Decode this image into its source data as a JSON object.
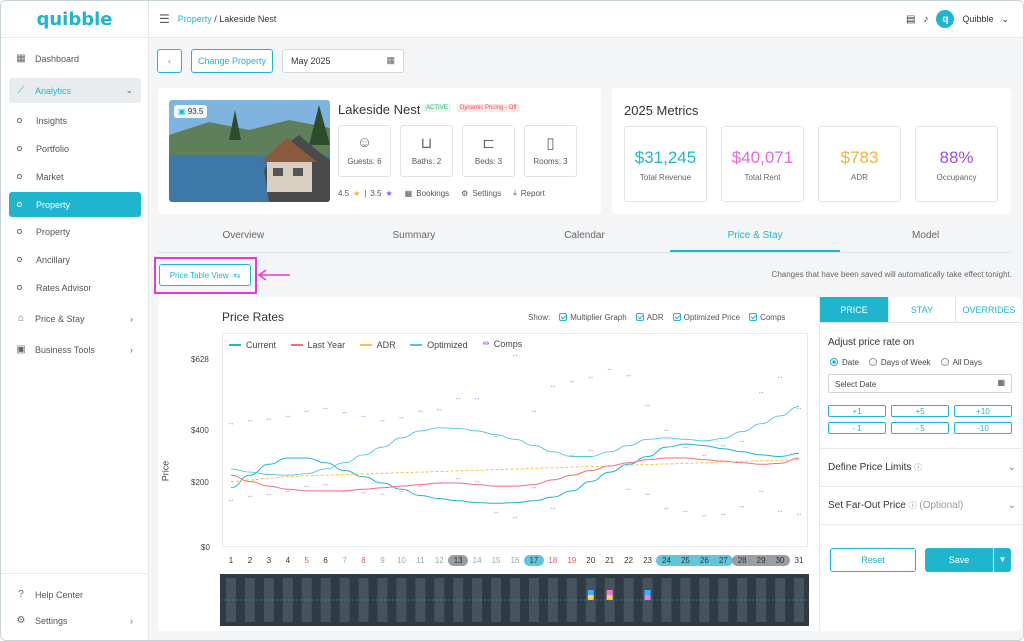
{
  "app": {
    "brand": "quibble"
  },
  "sidebar": {
    "items": [
      {
        "label": "Dashboard",
        "icon": "dashboard-icon"
      },
      {
        "label": "Analytics",
        "icon": "chart-icon"
      },
      {
        "label": "Insights"
      },
      {
        "label": "Portfolio"
      },
      {
        "label": "Market"
      },
      {
        "label": "Property"
      },
      {
        "label": "Property"
      },
      {
        "label": "Ancillary"
      },
      {
        "label": "Rates Advisor"
      },
      {
        "label": "Price & Stay",
        "icon": "home-lock-icon"
      },
      {
        "label": "Business Tools",
        "icon": "briefcase-icon"
      }
    ],
    "help": "Help Center",
    "settings": "Settings"
  },
  "breadcrumb": {
    "parent": "Property",
    "sep": " / ",
    "current": "Lakeside Nest"
  },
  "user": {
    "name": "Quibble",
    "initial": "q"
  },
  "toolbar": {
    "back": "‹",
    "change_property": "Change Property",
    "date": "May 2025"
  },
  "property": {
    "name": "Lakeside Nest",
    "status": "ACTIVE",
    "pricing": "Dynamic Pricing - Off",
    "score": "93.5",
    "amenities": [
      {
        "label": "Guests: 6"
      },
      {
        "label": "Baths: 2"
      },
      {
        "label": "Beds: 3"
      },
      {
        "label": "Rooms: 3"
      }
    ],
    "rating1": "4.5",
    "rating_sep": "|",
    "rating2": "3.5",
    "bookings": "Bookings",
    "settings": "Settings",
    "report": "Report"
  },
  "metrics": {
    "title": "2025 Metrics",
    "items": [
      {
        "value": "$31,245",
        "label": "Total Revenue",
        "color": "#1fb5cf"
      },
      {
        "value": "$40,071",
        "label": "Total Rent",
        "color": "#e26ad8"
      },
      {
        "value": "$783",
        "label": "ADR",
        "color": "#f0b33c"
      },
      {
        "value": "88%",
        "label": "Occupancy",
        "color": "#9a4fe0"
      }
    ]
  },
  "tabs": [
    "Overview",
    "Summary",
    "Calendar",
    "Price & Stay",
    "Model"
  ],
  "view": {
    "button": "Price Table View",
    "notice": "Changes that have been saved will automatically take effect tonight."
  },
  "chart": {
    "title": "Price Rates",
    "show_label": "Show:",
    "toggles": [
      "Multiplier Graph",
      "ADR",
      "Optimized Price",
      "Comps"
    ],
    "ylabel": "Price",
    "yticks": [
      "$628",
      "$400",
      "$200",
      "$0"
    ]
  },
  "chart_data": {
    "type": "line",
    "title": "Price Rates",
    "xlabel": "",
    "ylabel": "Price",
    "ylim": [
      0,
      628
    ],
    "yticks": [
      0,
      200,
      400,
      628
    ],
    "x": [
      1,
      2,
      3,
      4,
      5,
      6,
      7,
      8,
      9,
      10,
      11,
      12,
      13,
      14,
      15,
      16,
      17,
      18,
      19,
      20,
      21,
      22,
      23,
      24,
      25,
      26,
      27,
      28,
      29,
      30,
      31
    ],
    "legend": [
      "Current",
      "Last Year",
      "ADR",
      "Optimized",
      "Comps"
    ],
    "series": [
      {
        "name": "Current",
        "color": "#1fb5cf",
        "values": [
          190,
          230,
          265,
          285,
          285,
          270,
          245,
          225,
          205,
          185,
          165,
          155,
          148,
          142,
          140,
          142,
          148,
          160,
          180,
          210,
          240,
          265,
          290,
          320,
          330,
          325,
          315,
          305,
          295,
          290,
          300
        ]
      },
      {
        "name": "Last Year",
        "color": "#f26d7d",
        "values": [
          230,
          210,
          195,
          185,
          180,
          180,
          180,
          185,
          190,
          195,
          200,
          205,
          205,
          200,
          195,
          195,
          200,
          215,
          230,
          245,
          260,
          270,
          280,
          285,
          285,
          280,
          275,
          270,
          265,
          268,
          285
        ]
      },
      {
        "name": "ADR",
        "color": "#f5c542",
        "values": [
          210,
          215,
          220,
          225,
          228,
          230,
          232,
          234,
          236,
          238,
          240,
          242,
          244,
          246,
          248,
          250,
          252,
          254,
          256,
          258,
          260,
          262,
          264,
          266,
          268,
          270,
          272,
          274,
          276,
          278,
          280
        ]
      },
      {
        "name": "Optimized",
        "color": "#4cc7dc",
        "values": [
          250,
          240,
          232,
          230,
          235,
          250,
          270,
          295,
          320,
          350,
          372,
          382,
          380,
          372,
          360,
          345,
          325,
          305,
          290,
          290,
          305,
          325,
          345,
          350,
          345,
          340,
          348,
          370,
          395,
          420,
          450
        ]
      },
      {
        "name": "Comps",
        "color": "#c26ce8",
        "values": [
          [
            400,
            155
          ],
          [
            410,
            168
          ],
          [
            415,
            175
          ],
          [
            425,
            185
          ],
          [
            440,
            200
          ],
          [
            450,
            205
          ],
          [
            435,
            185
          ],
          [
            425,
            180
          ],
          [
            410,
            175
          ],
          [
            420,
            185
          ],
          [
            440,
            200
          ],
          [
            445,
            210
          ],
          [
            480,
            225
          ],
          [
            480,
            215
          ],
          [
            360,
            115
          ],
          [
            620,
            100
          ],
          [
            440,
            195
          ],
          [
            520,
            130
          ],
          [
            535,
            300
          ],
          [
            550,
            315
          ],
          [
            575,
            265
          ],
          [
            555,
            190
          ],
          [
            460,
            175
          ],
          [
            380,
            130
          ],
          [
            325,
            120
          ],
          [
            300,
            105
          ],
          [
            330,
            110
          ],
          [
            345,
            135
          ],
          [
            500,
            185
          ],
          [
            550,
            120
          ],
          [
            450,
            110
          ]
        ]
      }
    ],
    "highlight_days": {
      "gray": [
        13,
        28,
        29,
        30
      ],
      "blue": [
        17,
        24,
        25,
        26,
        27
      ]
    },
    "red_days": [
      5,
      8,
      18,
      19
    ]
  },
  "right_panel": {
    "tabs": [
      "PRICE",
      "STAY",
      "OVERRIDES"
    ],
    "adjust_title": "Adjust price rate on",
    "radios": [
      "Date",
      "Days of Week",
      "All Days"
    ],
    "select_date_placeholder": "Select Date",
    "steps": [
      "+1",
      "+5",
      "+10",
      "- 1",
      "- 5",
      "-10"
    ],
    "limits": "Define Price Limits",
    "farout": "Set Far-Out Price",
    "optional": "(Optional)",
    "reset": "Reset",
    "save": "Save"
  }
}
